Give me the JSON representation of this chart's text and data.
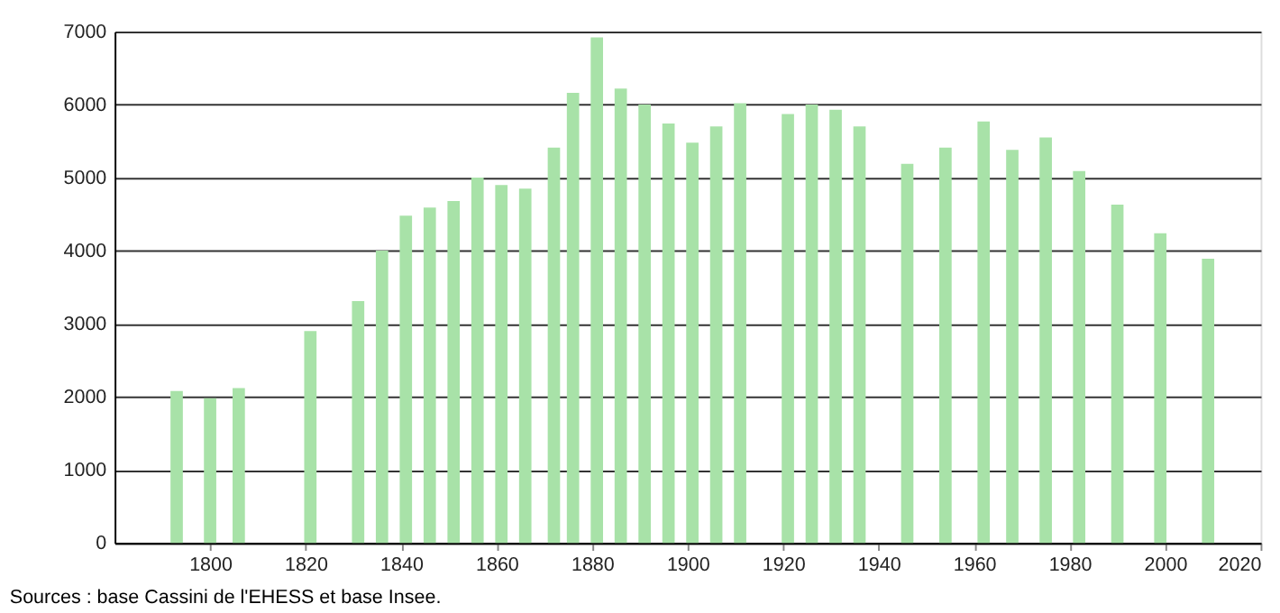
{
  "chart_data": {
    "type": "bar",
    "x": [
      1793,
      1800,
      1806,
      1821,
      1831,
      1836,
      1841,
      1846,
      1851,
      1856,
      1861,
      1866,
      1872,
      1876,
      1881,
      1886,
      1891,
      1896,
      1901,
      1906,
      1911,
      1921,
      1926,
      1931,
      1936,
      1946,
      1954,
      1962,
      1968,
      1975,
      1982,
      1990,
      1999,
      2009
    ],
    "values": [
      2080,
      1980,
      2120,
      2900,
      3310,
      4000,
      4480,
      4590,
      4680,
      5000,
      4900,
      4850,
      5410,
      6160,
      6920,
      6220,
      6000,
      5740,
      5480,
      5700,
      6020,
      5870,
      6000,
      5930,
      5700,
      5190,
      5410,
      5770,
      5380,
      5550,
      5090,
      4630,
      4240,
      3890
    ],
    "color": "#a8e2a8",
    "xlim": [
      1780,
      2020
    ],
    "xticks": [
      1800,
      1820,
      1840,
      1860,
      1880,
      1900,
      1920,
      1940,
      1960,
      1980,
      2000,
      2020
    ],
    "ylim": [
      0,
      7000
    ],
    "yticks": [
      0,
      1000,
      2000,
      3000,
      4000,
      5000,
      6000,
      7000
    ],
    "grid": "y",
    "annotations": [
      "Sources : base Cassini de l'EHESS et base Insee."
    ]
  }
}
